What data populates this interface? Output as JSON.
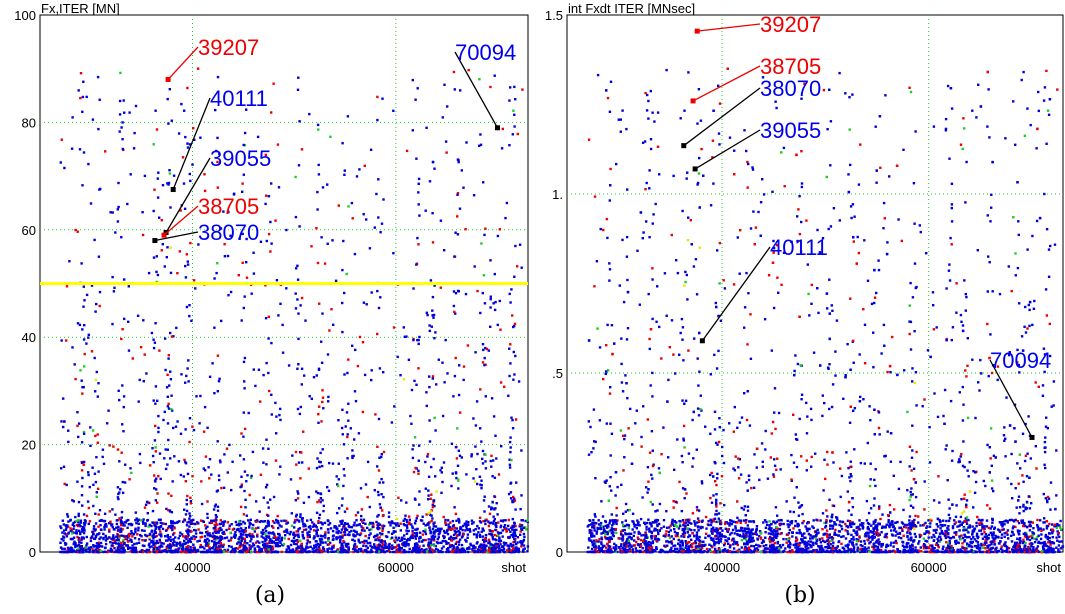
{
  "figure": {
    "left_caption": "(a)",
    "right_caption": "(b)"
  },
  "chart_data": [
    {
      "type": "scatter",
      "title": "Fx,ITER [MN]",
      "xlabel": "shot",
      "ylabel": "Fx,ITER [MN]",
      "xlim": [
        25000,
        73000
      ],
      "ylim": [
        0,
        100
      ],
      "x_ticks": [
        40000,
        60000
      ],
      "x_tick_labels": [
        "40000",
        "60000"
      ],
      "y_ticks": [
        0,
        20,
        40,
        60,
        80,
        100
      ],
      "y_tick_labels": [
        "0",
        "20",
        "40",
        "60",
        "80",
        "100"
      ],
      "grid": true,
      "threshold_line": {
        "y": 50,
        "color": "#ffff00"
      },
      "background_series_colors": {
        "blue": "#0000dd",
        "red": "#ee0000",
        "green": "#22cc22",
        "yellow": "#e8e800"
      },
      "highlighted_points": [
        {
          "label": "39207",
          "x": 37600,
          "y": 88,
          "label_color": "#ee0000"
        },
        {
          "label": "40111",
          "x": 38100,
          "y": 67.5,
          "label_color": "#0000ee"
        },
        {
          "label": "39055",
          "x": 37400,
          "y": 59.5,
          "label_color": "#0000ee"
        },
        {
          "label": "38705",
          "x": 37200,
          "y": 59,
          "label_color": "#ee0000"
        },
        {
          "label": "38070",
          "x": 36300,
          "y": 58,
          "label_color": "#0000ee"
        },
        {
          "label": "70094",
          "x": 70000,
          "y": 79,
          "label_color": "#0000ee"
        }
      ]
    },
    {
      "type": "scatter",
      "title": "int Fxdt ITER [MNsec]",
      "xlabel": "shot",
      "ylabel": "int Fxdt ITER [MNsec]",
      "xlim": [
        25000,
        73000
      ],
      "ylim": [
        0,
        1.5
      ],
      "x_ticks": [
        40000,
        60000
      ],
      "x_tick_labels": [
        "40000",
        "60000"
      ],
      "y_ticks": [
        0,
        0.5,
        1,
        1.5
      ],
      "y_tick_labels": [
        "0",
        ".5",
        "1.",
        "1.5"
      ],
      "grid": true,
      "background_series_colors": {
        "blue": "#0000dd",
        "red": "#ee0000",
        "green": "#22cc22",
        "yellow": "#e8e800"
      },
      "highlighted_points": [
        {
          "label": "39207",
          "x": 37600,
          "y": 1.455,
          "label_color": "#ee0000"
        },
        {
          "label": "38705",
          "x": 37200,
          "y": 1.26,
          "label_color": "#ee0000"
        },
        {
          "label": "38070",
          "x": 36300,
          "y": 1.135,
          "label_color": "#0000ee"
        },
        {
          "label": "39055",
          "x": 37400,
          "y": 1.07,
          "label_color": "#0000ee"
        },
        {
          "label": "40111",
          "x": 38100,
          "y": 0.59,
          "label_color": "#0000ee"
        },
        {
          "label": "70094",
          "x": 70000,
          "y": 0.32,
          "label_color": "#0000ee"
        }
      ]
    }
  ]
}
